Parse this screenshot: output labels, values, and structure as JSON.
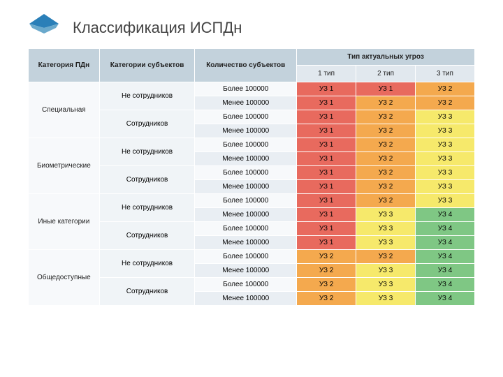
{
  "title": "Классификация ИСПДн",
  "logo_color": "#2a7fb8",
  "headers": {
    "col1": "Категория ПДн",
    "col2": "Категории субъектов",
    "col3": "Количество субъектов",
    "col4": "Тип актуальных угроз",
    "type1": "1 тип",
    "type2": "2 тип",
    "type3": "3 тип"
  },
  "categories": [
    {
      "label": "Специальная"
    },
    {
      "label": "Биометрические"
    },
    {
      "label": "Иные категории"
    },
    {
      "label": "Общедоступные"
    }
  ],
  "subjects": {
    "non_emp": "Не сотрудников",
    "emp": "Сотрудников"
  },
  "qty": {
    "more": "Более 100000",
    "less": "Менее 100000"
  },
  "colors": {
    "uz1": "#e86a5e",
    "uz2": "#f4a94e",
    "uz3": "#f6e96b",
    "uz4": "#7fc784",
    "header_bg": "#c3d2dc",
    "subheader_bg": "#e1e8ee"
  },
  "rows": [
    {
      "t1": "УЗ 1",
      "t2": "УЗ 1",
      "t3": "УЗ 2",
      "c1": "uz1",
      "c2": "uz1",
      "c3": "uz2"
    },
    {
      "t1": "УЗ 1",
      "t2": "УЗ 2",
      "t3": "УЗ 2",
      "c1": "uz1",
      "c2": "uz2",
      "c3": "uz2"
    },
    {
      "t1": "УЗ 1",
      "t2": "УЗ 2",
      "t3": "УЗ 3",
      "c1": "uz1",
      "c2": "uz2",
      "c3": "uz3"
    },
    {
      "t1": "УЗ 1",
      "t2": "УЗ 2",
      "t3": "УЗ 3",
      "c1": "uz1",
      "c2": "uz2",
      "c3": "uz3"
    },
    {
      "t1": "УЗ 1",
      "t2": "УЗ 2",
      "t3": "УЗ 3",
      "c1": "uz1",
      "c2": "uz2",
      "c3": "uz3"
    },
    {
      "t1": "УЗ 1",
      "t2": "УЗ 2",
      "t3": "УЗ 3",
      "c1": "uz1",
      "c2": "uz2",
      "c3": "uz3"
    },
    {
      "t1": "УЗ 1",
      "t2": "УЗ 2",
      "t3": "УЗ 3",
      "c1": "uz1",
      "c2": "uz2",
      "c3": "uz3"
    },
    {
      "t1": "УЗ 1",
      "t2": "УЗ 2",
      "t3": "УЗ 3",
      "c1": "uz1",
      "c2": "uz2",
      "c3": "uz3"
    },
    {
      "t1": "УЗ 1",
      "t2": "УЗ 2",
      "t3": "УЗ 3",
      "c1": "uz1",
      "c2": "uz2",
      "c3": "uz3"
    },
    {
      "t1": "УЗ 1",
      "t2": "УЗ 3",
      "t3": "УЗ 4",
      "c1": "uz1",
      "c2": "uz3",
      "c3": "uz4"
    },
    {
      "t1": "УЗ 1",
      "t2": "УЗ 3",
      "t3": "УЗ 4",
      "c1": "uz1",
      "c2": "uz3",
      "c3": "uz4"
    },
    {
      "t1": "УЗ 1",
      "t2": "УЗ 3",
      "t3": "УЗ 4",
      "c1": "uz1",
      "c2": "uz3",
      "c3": "uz4"
    },
    {
      "t1": "УЗ 2",
      "t2": "УЗ 2",
      "t3": "УЗ 4",
      "c1": "uz2",
      "c2": "uz2",
      "c3": "uz4"
    },
    {
      "t1": "УЗ 2",
      "t2": "УЗ 3",
      "t3": "УЗ 4",
      "c1": "uz2",
      "c2": "uz3",
      "c3": "uz4"
    },
    {
      "t1": "УЗ 2",
      "t2": "УЗ 3",
      "t3": "УЗ 4",
      "c1": "uz2",
      "c2": "uz3",
      "c3": "uz4"
    },
    {
      "t1": "УЗ 2",
      "t2": "УЗ 3",
      "t3": "УЗ 4",
      "c1": "uz2",
      "c2": "uz3",
      "c3": "uz4"
    }
  ]
}
